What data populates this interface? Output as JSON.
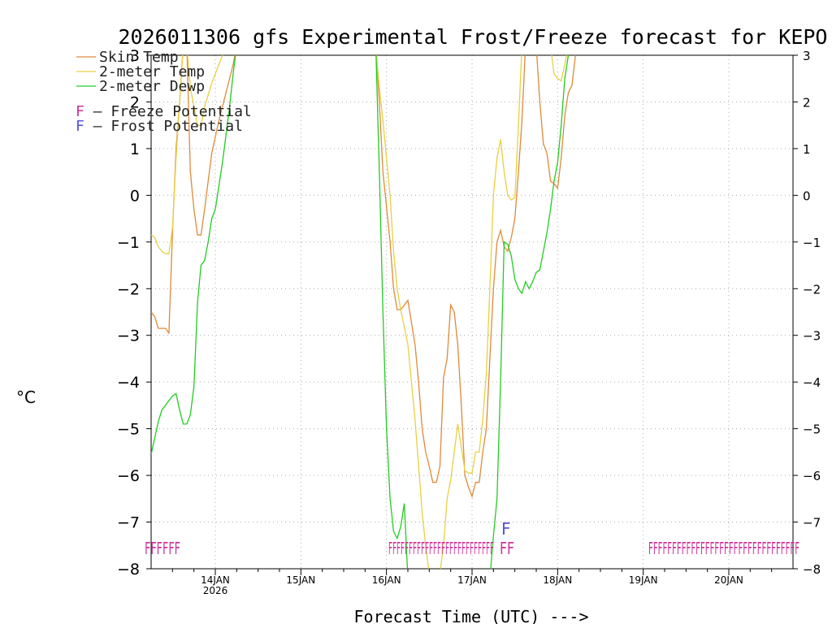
{
  "chart_data": {
    "type": "line",
    "title": "2026011306 gfs Experimental Frost/Freeze forecast for KEPO",
    "xlabel": "Forecast Time (UTC) --->",
    "ylabel": "°C",
    "ylim": [
      -8,
      3
    ],
    "yticks": [
      3,
      2,
      1,
      0,
      -1,
      -2,
      -3,
      -4,
      -5,
      -6,
      -7,
      -8
    ],
    "ytick_labels": [
      "3",
      "2",
      "1",
      "0",
      "−1",
      "−2",
      "−3",
      "−4",
      "−5",
      "−6",
      "−7",
      "−8"
    ],
    "xlim_hours": [
      0,
      180
    ],
    "xticks": [
      {
        "hour": 18,
        "label": "14JAN",
        "sublabel": "2026"
      },
      {
        "hour": 42,
        "label": "15JAN"
      },
      {
        "hour": 66,
        "label": "16JAN"
      },
      {
        "hour": 90,
        "label": "17JAN"
      },
      {
        "hour": 114,
        "label": "18JAN"
      },
      {
        "hour": 138,
        "label": "19JAN"
      },
      {
        "hour": 162,
        "label": "20JAN"
      }
    ],
    "legend": [
      {
        "label": "Skin Temp",
        "color": "#e08a3a"
      },
      {
        "label": "2-meter Temp",
        "color": "#e8d040"
      },
      {
        "label": "2-meter Dewp",
        "color": "#22cc22"
      }
    ],
    "potential_legend": [
      {
        "label": "F – Freeze Potential",
        "color": "#cc3399"
      },
      {
        "label": "F – Frost Potential",
        "color": "#5555dd"
      }
    ],
    "series": [
      {
        "name": "Skin Temp",
        "color": "#e08a3a",
        "points": [
          [
            0,
            -2.5
          ],
          [
            1,
            -2.6
          ],
          [
            2,
            -2.85
          ],
          [
            4,
            -2.85
          ],
          [
            5,
            -2.95
          ],
          [
            6,
            -0.8
          ],
          [
            7,
            1.0
          ],
          [
            8,
            2.0
          ],
          [
            9,
            3.2
          ],
          [
            10,
            3.2
          ],
          [
            11,
            0.5
          ],
          [
            12,
            -0.3
          ],
          [
            13,
            -0.85
          ],
          [
            14,
            -0.85
          ],
          [
            15,
            -0.3
          ],
          [
            17,
            0.9
          ],
          [
            19,
            1.6
          ],
          [
            21,
            2.2
          ],
          [
            23,
            2.8
          ],
          [
            24,
            3.2
          ],
          [
            63,
            3.2
          ],
          [
            64,
            2.0
          ],
          [
            65,
            0.5
          ],
          [
            67,
            -1.0
          ],
          [
            68,
            -2.0
          ],
          [
            69,
            -2.45
          ],
          [
            70,
            -2.45
          ],
          [
            72,
            -2.25
          ],
          [
            74,
            -3.2
          ],
          [
            75,
            -4.0
          ],
          [
            76,
            -5.0
          ],
          [
            77,
            -5.5
          ],
          [
            78,
            -5.8
          ],
          [
            79,
            -6.15
          ],
          [
            80,
            -6.15
          ],
          [
            81,
            -5.8
          ],
          [
            82,
            -3.9
          ],
          [
            83,
            -3.5
          ],
          [
            84,
            -2.35
          ],
          [
            85,
            -2.5
          ],
          [
            86,
            -3.2
          ],
          [
            87,
            -4.5
          ],
          [
            88,
            -6.0
          ],
          [
            89,
            -6.25
          ],
          [
            90,
            -6.45
          ],
          [
            91,
            -6.15
          ],
          [
            92,
            -6.15
          ],
          [
            93,
            -5.5
          ],
          [
            94,
            -5.0
          ],
          [
            95,
            -3.5
          ],
          [
            96,
            -2.0
          ],
          [
            97,
            -1.0
          ],
          [
            98,
            -0.75
          ],
          [
            99,
            -1.1
          ],
          [
            100,
            -1.2
          ],
          [
            101,
            -0.9
          ],
          [
            102,
            -0.5
          ],
          [
            103,
            0.5
          ],
          [
            104,
            1.6
          ],
          [
            105,
            3.2
          ],
          [
            108,
            3.2
          ],
          [
            109,
            2.0
          ],
          [
            110,
            1.1
          ],
          [
            111,
            0.9
          ],
          [
            112,
            0.3
          ],
          [
            113,
            0.25
          ],
          [
            114,
            0.15
          ],
          [
            115,
            0.8
          ],
          [
            116,
            1.7
          ],
          [
            117,
            2.2
          ],
          [
            118,
            2.35
          ],
          [
            119,
            3.0
          ],
          [
            120,
            3.2
          ]
        ]
      },
      {
        "name": "2-meter Temp",
        "color": "#e8d040",
        "points": [
          [
            0,
            -0.85
          ],
          [
            1,
            -0.9
          ],
          [
            2,
            -1.1
          ],
          [
            3,
            -1.2
          ],
          [
            4,
            -1.25
          ],
          [
            5,
            -1.25
          ],
          [
            6,
            -0.7
          ],
          [
            7,
            0.8
          ],
          [
            8,
            2.0
          ],
          [
            9,
            3.2
          ],
          [
            10,
            3.2
          ],
          [
            11,
            2.3
          ],
          [
            12,
            1.9
          ],
          [
            13,
            1.5
          ],
          [
            14,
            1.5
          ],
          [
            15,
            1.9
          ],
          [
            17,
            2.4
          ],
          [
            19,
            2.8
          ],
          [
            21,
            3.2
          ],
          [
            63,
            3.2
          ],
          [
            64,
            2.3
          ],
          [
            65,
            1.6
          ],
          [
            67,
            0.0
          ],
          [
            68,
            -1.2
          ],
          [
            69,
            -2.0
          ],
          [
            70,
            -2.45
          ],
          [
            72,
            -3.2
          ],
          [
            73,
            -4.0
          ],
          [
            74,
            -4.8
          ],
          [
            75,
            -5.8
          ],
          [
            76,
            -6.8
          ],
          [
            77,
            -7.5
          ],
          [
            78,
            -8.1
          ],
          [
            79,
            -8.2
          ],
          [
            80,
            -8.2
          ],
          [
            81,
            -8.1
          ],
          [
            82,
            -7.5
          ],
          [
            83,
            -6.5
          ],
          [
            84,
            -6.1
          ],
          [
            85,
            -5.5
          ],
          [
            86,
            -4.9
          ],
          [
            87,
            -5.4
          ],
          [
            88,
            -5.9
          ],
          [
            89,
            -5.95
          ],
          [
            90,
            -5.95
          ],
          [
            91,
            -5.5
          ],
          [
            92,
            -5.5
          ],
          [
            93,
            -4.8
          ],
          [
            94,
            -3.8
          ],
          [
            95,
            -2.0
          ],
          [
            96,
            0.0
          ],
          [
            97,
            0.8
          ],
          [
            98,
            1.2
          ],
          [
            99,
            0.5
          ],
          [
            100,
            0.0
          ],
          [
            101,
            -0.1
          ],
          [
            102,
            -0.05
          ],
          [
            103,
            1.5
          ],
          [
            104,
            3.2
          ],
          [
            112,
            3.2
          ],
          [
            113,
            2.6
          ],
          [
            114,
            2.5
          ],
          [
            115,
            2.45
          ],
          [
            116,
            2.8
          ],
          [
            117,
            3.2
          ]
        ]
      },
      {
        "name": "2-meter Dewp",
        "color": "#22cc22",
        "points": [
          [
            0,
            -5.55
          ],
          [
            1,
            -5.2
          ],
          [
            2,
            -4.85
          ],
          [
            3,
            -4.6
          ],
          [
            4,
            -4.5
          ],
          [
            5,
            -4.4
          ],
          [
            6,
            -4.3
          ],
          [
            7,
            -4.25
          ],
          [
            8,
            -4.6
          ],
          [
            9,
            -4.9
          ],
          [
            10,
            -4.9
          ],
          [
            11,
            -4.7
          ],
          [
            12,
            -4.1
          ],
          [
            13,
            -2.3
          ],
          [
            14,
            -1.5
          ],
          [
            15,
            -1.4
          ],
          [
            16,
            -1.0
          ],
          [
            17,
            -0.5
          ],
          [
            18,
            -0.3
          ],
          [
            19,
            0.2
          ],
          [
            20,
            0.7
          ],
          [
            21,
            1.3
          ],
          [
            22,
            1.9
          ],
          [
            23,
            2.6
          ],
          [
            24,
            3.2
          ],
          [
            63,
            3.2
          ],
          [
            64,
            0.5
          ],
          [
            65,
            -2.5
          ],
          [
            66,
            -5.0
          ],
          [
            67,
            -6.5
          ],
          [
            68,
            -7.2
          ],
          [
            69,
            -7.35
          ],
          [
            70,
            -7.1
          ],
          [
            71,
            -6.6
          ],
          [
            72,
            -8.2
          ],
          [
            95,
            -8.2
          ],
          [
            96,
            -7.3
          ],
          [
            97,
            -6.5
          ],
          [
            98,
            -4.0
          ],
          [
            99,
            -1.0
          ],
          [
            100,
            -1.05
          ],
          [
            101,
            -1.3
          ],
          [
            102,
            -1.8
          ],
          [
            103,
            -2.0
          ],
          [
            104,
            -2.1
          ],
          [
            105,
            -1.85
          ],
          [
            106,
            -2.0
          ],
          [
            107,
            -1.85
          ],
          [
            108,
            -1.65
          ],
          [
            109,
            -1.6
          ],
          [
            110,
            -1.2
          ],
          [
            111,
            -0.8
          ],
          [
            112,
            -0.3
          ],
          [
            113,
            0.3
          ],
          [
            114,
            0.7
          ],
          [
            115,
            1.5
          ],
          [
            116,
            2.5
          ],
          [
            117,
            3.0
          ],
          [
            118,
            3.2
          ]
        ]
      }
    ],
    "freeze_potential_marks": [
      "FFFFFF",
      "FFFFFFFFFFFFFFFFFFFFFFFFFF",
      "FF",
      "FFFFFFFFFFFFFFFFFFFFFFFFFFFFFFFF"
    ],
    "frost_potential_mark": "F"
  }
}
